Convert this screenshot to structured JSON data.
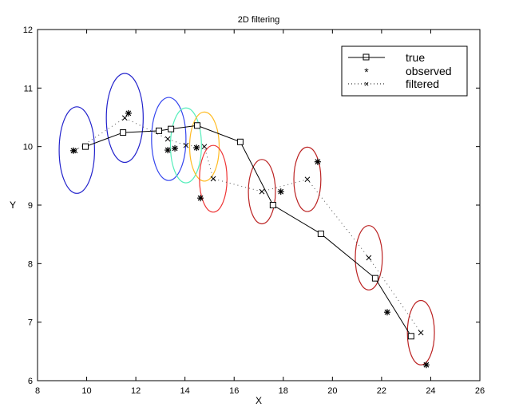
{
  "chart_data": {
    "type": "line",
    "title": "2D filtering",
    "xlabel": "X",
    "ylabel": "Y",
    "xlim": [
      8,
      26
    ],
    "ylim": [
      6,
      12
    ],
    "xticks": [
      8,
      10,
      12,
      14,
      16,
      18,
      20,
      22,
      24,
      26
    ],
    "yticks": [
      6,
      7,
      8,
      9,
      10,
      11,
      12
    ],
    "legend_position": "top-right",
    "series": [
      {
        "name": "true",
        "style": "solid-square",
        "x": [
          9.95,
          11.48,
          12.94,
          13.43,
          14.5,
          16.25,
          17.58,
          19.53,
          21.74,
          23.2
        ],
        "y": [
          10.0,
          10.24,
          10.27,
          10.3,
          10.36,
          10.08,
          9.0,
          8.51,
          7.75,
          6.76
        ]
      },
      {
        "name": "observed",
        "style": "star",
        "x": [
          9.46,
          11.7,
          13.3,
          13.59,
          14.47,
          14.63,
          17.9,
          19.4,
          22.23,
          23.82
        ],
        "y": [
          9.93,
          10.57,
          9.94,
          9.97,
          9.98,
          9.12,
          9.23,
          9.74,
          7.17,
          6.27
        ]
      },
      {
        "name": "filtered",
        "style": "dotted-x",
        "x": [
          9.53,
          11.55,
          13.3,
          14.04,
          14.79,
          15.15,
          17.13,
          18.98,
          21.48,
          23.6
        ],
        "y": [
          9.93,
          10.49,
          10.13,
          10.02,
          10.0,
          9.45,
          9.23,
          9.44,
          8.1,
          6.82
        ]
      }
    ],
    "ellipses": [
      {
        "cx": 9.6,
        "cy": 9.94,
        "rx": 0.72,
        "ry": 0.74,
        "color": "#2222cc"
      },
      {
        "cx": 11.55,
        "cy": 10.49,
        "rx": 0.75,
        "ry": 0.76,
        "color": "#2222cc"
      },
      {
        "cx": 13.34,
        "cy": 10.13,
        "rx": 0.7,
        "ry": 0.71,
        "color": "#3344ee"
      },
      {
        "cx": 14.04,
        "cy": 10.02,
        "rx": 0.63,
        "ry": 0.64,
        "color": "#55eebb"
      },
      {
        "cx": 14.79,
        "cy": 10.0,
        "rx": 0.6,
        "ry": 0.59,
        "color": "#ffbb22"
      },
      {
        "cx": 15.15,
        "cy": 9.45,
        "rx": 0.56,
        "ry": 0.57,
        "color": "#ee3333"
      },
      {
        "cx": 17.13,
        "cy": 9.23,
        "rx": 0.55,
        "ry": 0.55,
        "color": "#bb2222"
      },
      {
        "cx": 18.98,
        "cy": 9.44,
        "rx": 0.55,
        "ry": 0.55,
        "color": "#bb2222"
      },
      {
        "cx": 21.48,
        "cy": 8.1,
        "rx": 0.55,
        "ry": 0.55,
        "color": "#bb2222"
      },
      {
        "cx": 23.6,
        "cy": 6.82,
        "rx": 0.55,
        "ry": 0.55,
        "color": "#bb2222"
      }
    ]
  }
}
